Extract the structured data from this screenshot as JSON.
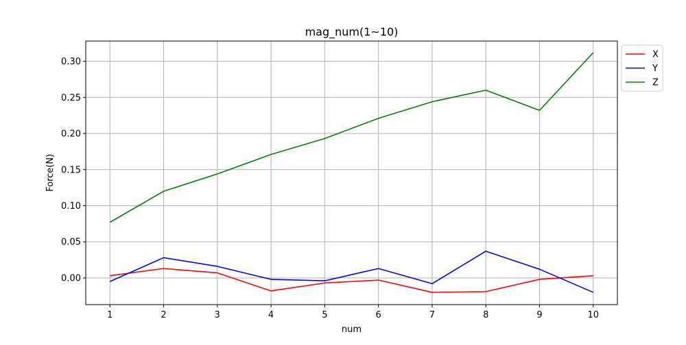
{
  "chart_data": {
    "type": "line",
    "title": "mag_num(1~10)",
    "xlabel": "num",
    "ylabel": "Force(N)",
    "x": [
      1,
      2,
      3,
      4,
      5,
      6,
      7,
      8,
      9,
      10
    ],
    "x_ticks": [
      "1",
      "2",
      "3",
      "4",
      "5",
      "6",
      "7",
      "8",
      "9",
      "10"
    ],
    "y_ticks": [
      "0.00",
      "0.05",
      "0.10",
      "0.15",
      "0.20",
      "0.25",
      "0.30"
    ],
    "xlim": [
      0.55,
      10.45
    ],
    "ylim": [
      -0.037,
      0.328
    ],
    "grid": true,
    "legend_position": "outside-top-right",
    "series": [
      {
        "name": "X",
        "color": "#ff0000",
        "values": [
          0.003,
          0.013,
          0.007,
          -0.018,
          -0.007,
          -0.003,
          -0.02,
          -0.019,
          -0.002,
          0.003
        ]
      },
      {
        "name": "Y",
        "color": "#0000ff",
        "values": [
          -0.005,
          0.028,
          0.016,
          -0.002,
          -0.004,
          0.013,
          -0.008,
          0.037,
          0.012,
          -0.02
        ]
      },
      {
        "name": "Z",
        "color": "#008000",
        "values": [
          0.077,
          0.12,
          0.144,
          0.171,
          0.193,
          0.221,
          0.244,
          0.26,
          0.232,
          0.312
        ]
      }
    ]
  }
}
